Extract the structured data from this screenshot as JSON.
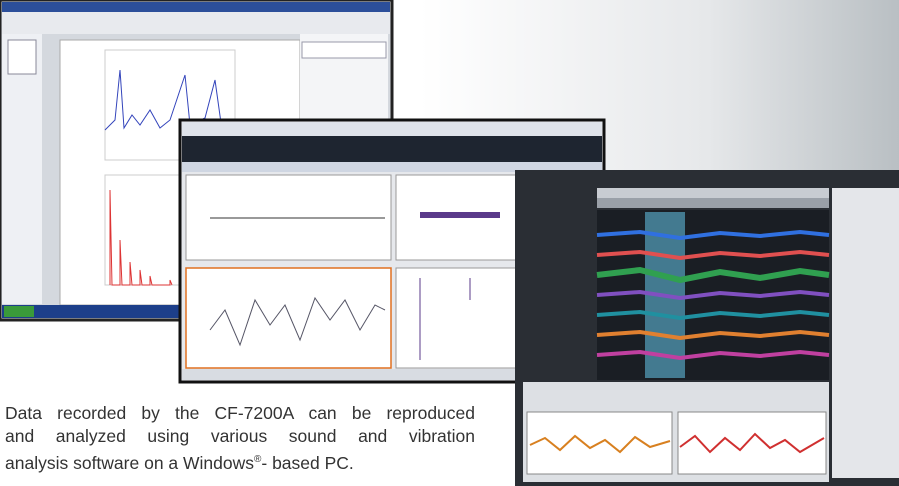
{
  "caption": {
    "line_1": "Data recorded by the CF-7200A can be reproduced",
    "line_2": "and analyzed using various sound and vibration",
    "line_3_start": "analysis software on a Windows",
    "registered_mark": "®",
    "line_3_end": "- based PC."
  }
}
